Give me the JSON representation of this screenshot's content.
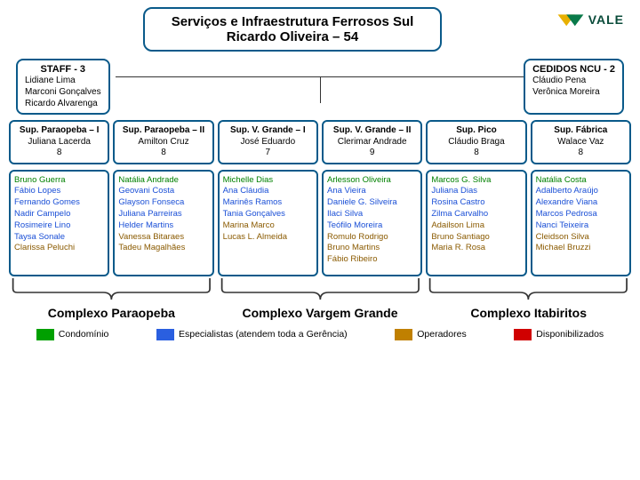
{
  "title_line1": "Serviços e Infraestrutura Ferrosos Sul",
  "title_line2": "Ricardo Oliveira – 54",
  "logo_text": "VALE",
  "staff": {
    "header": "STAFF - 3",
    "names": [
      "Lidiane Lima",
      "Marconi Gonçalves",
      "Ricardo Alvarenga"
    ]
  },
  "cedidos": {
    "header": "CEDIDOS NCU - 2",
    "names": [
      "Cláudio Pena",
      "Verônica Moreira"
    ]
  },
  "sups": [
    {
      "title": "Sup. Paraopeba – I",
      "name": "Juliana Lacerda",
      "count": "8"
    },
    {
      "title": "Sup. Paraopeba – II",
      "name": "Amilton Cruz",
      "count": "8"
    },
    {
      "title": "Sup. V. Grande – I",
      "name": "José Eduardo",
      "count": "7"
    },
    {
      "title": "Sup. V. Grande – II",
      "name": "Clerimar Andrade",
      "count": "9"
    },
    {
      "title": "Sup. Pico",
      "name": "Cláudio Braga",
      "count": "8"
    },
    {
      "title": "Sup. Fábrica",
      "name": "Walace Vaz",
      "count": "8"
    }
  ],
  "teams": [
    [
      {
        "n": "Bruno Guerra",
        "c": "cond"
      },
      {
        "n": "Fábio Lopes",
        "c": "esp"
      },
      {
        "n": "Fernando Gomes",
        "c": "esp"
      },
      {
        "n": "Nadir Campelo",
        "c": "esp"
      },
      {
        "n": "Rosimeire Lino",
        "c": "esp"
      },
      {
        "n": "Taysa Sonale",
        "c": "esp"
      },
      {
        "n": "Clarissa Peluchi",
        "c": "op"
      }
    ],
    [
      {
        "n": "Natália Andrade",
        "c": "cond"
      },
      {
        "n": "Geovani Costa",
        "c": "esp"
      },
      {
        "n": "Glayson Fonseca",
        "c": "esp"
      },
      {
        "n": "Juliana Parreiras",
        "c": "esp"
      },
      {
        "n": "Helder Martins",
        "c": "esp"
      },
      {
        "n": "Vanessa Bitaraes",
        "c": "op"
      },
      {
        "n": "Tadeu Magalhães",
        "c": "op"
      }
    ],
    [
      {
        "n": "Michelle Dias",
        "c": "cond"
      },
      {
        "n": "Ana Cláudia",
        "c": "esp"
      },
      {
        "n": "Marinês Ramos",
        "c": "esp"
      },
      {
        "n": "Tania Gonçalves",
        "c": "esp"
      },
      {
        "n": "Marina Marco",
        "c": "op"
      },
      {
        "n": "Lucas L. Almeida",
        "c": "op"
      }
    ],
    [
      {
        "n": "Arlesson Oliveira",
        "c": "cond"
      },
      {
        "n": "Ana Vieira",
        "c": "esp"
      },
      {
        "n": "Daniele G. Silveira",
        "c": "esp"
      },
      {
        "n": "Ilaci Silva",
        "c": "esp"
      },
      {
        "n": "Teófilo Moreira",
        "c": "esp"
      },
      {
        "n": "Romulo Rodrigo",
        "c": "op"
      },
      {
        "n": "Bruno Martins",
        "c": "op"
      },
      {
        "n": "Fábio Ribeiro",
        "c": "op"
      }
    ],
    [
      {
        "n": "Marcos G. Silva",
        "c": "cond"
      },
      {
        "n": "Juliana Dias",
        "c": "esp"
      },
      {
        "n": "Rosina Castro",
        "c": "esp"
      },
      {
        "n": "Zilma Carvalho",
        "c": "esp"
      },
      {
        "n": "Adailson Lima",
        "c": "op"
      },
      {
        "n": "Bruno Santiago",
        "c": "op"
      },
      {
        "n": "Maria R. Rosa",
        "c": "op"
      }
    ],
    [
      {
        "n": "Natália Costa",
        "c": "cond"
      },
      {
        "n": "Adalberto Araújo",
        "c": "esp"
      },
      {
        "n": "Alexandre Viana",
        "c": "esp"
      },
      {
        "n": "Marcos Pedrosa",
        "c": "esp"
      },
      {
        "n": "Nanci Teixeira",
        "c": "esp"
      },
      {
        "n": "Cleidson Silva",
        "c": "op"
      },
      {
        "n": "Michael Bruzzi",
        "c": "op"
      }
    ]
  ],
  "complexes": [
    {
      "label": "Complexo Paraopeba",
      "span": 2
    },
    {
      "label": "Complexo Vargem Grande",
      "span": 2
    },
    {
      "label": "Complexo Itabiritos",
      "span": 2
    }
  ],
  "legend": {
    "cond": "Condomínio",
    "esp": "Especialistas (atendem toda a Gerência)",
    "op": "Operadores",
    "disp": "Disponibilizados"
  },
  "colors": {
    "border": "#0a5a8a",
    "cond": "#008000",
    "esp": "#1a4fd6",
    "op": "#8a5a00",
    "disp": "#c00000"
  }
}
